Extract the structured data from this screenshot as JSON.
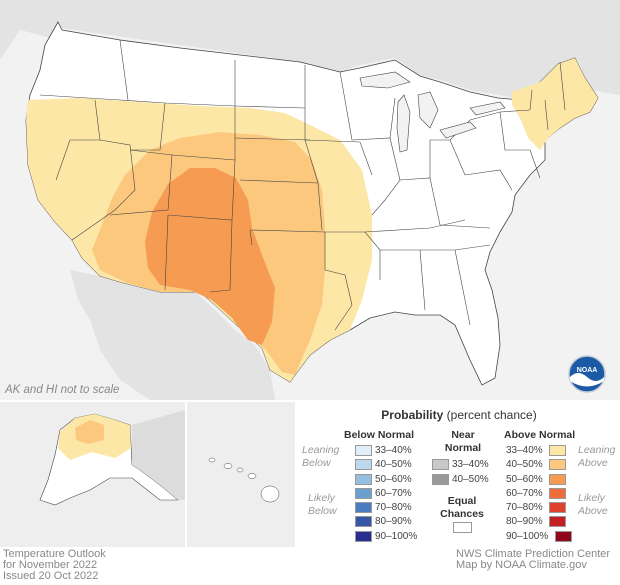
{
  "map": {
    "scale_note": "AK and HI not to scale",
    "footer_left": [
      "Temperature Outlook",
      "for November 2022",
      "Issued 20 Oct 2022"
    ],
    "footer_right": [
      "NWS Climate Prediction Center",
      "Map by NOAA Climate.gov"
    ],
    "logo_text": "NOAA",
    "colors": {
      "above_33_40": "#fde7a6",
      "above_40_50": "#fbc87e",
      "above_50_60": "#f69c52",
      "above_60_70": "#ee6d3b",
      "above_70_80": "#e0412d",
      "above_80_90": "#c41e25",
      "above_90_100": "#90071b",
      "below_33_40": "#dfeef8",
      "below_40_50": "#bdd9ee",
      "below_50_60": "#94bfe0",
      "below_60_70": "#6a9fd0",
      "below_70_80": "#4c7cc0",
      "below_80_90": "#3756a8",
      "below_90_100": "#2a2f8f",
      "near_33_40": "#c8c8c8",
      "near_40_50": "#9a9a9a",
      "equal": "#ffffff",
      "background_land": "#e6e6e6"
    }
  },
  "legend": {
    "title_bold": "Probability",
    "title_rest": "(percent chance)",
    "below_head": "Below Normal",
    "near_head_1": "Near",
    "near_head_2": "Normal",
    "above_head": "Above Normal",
    "leaning_below": [
      "Leaning",
      "Below"
    ],
    "likely_below": [
      "Likely",
      "Below"
    ],
    "leaning_above": [
      "Leaning",
      "Above"
    ],
    "likely_above": [
      "Likely",
      "Above"
    ],
    "ranges": [
      "33–40%",
      "40–50%",
      "50–60%",
      "60–70%",
      "70–80%",
      "80–90%",
      "90–100%"
    ],
    "near_ranges": [
      "33–40%",
      "40–50%"
    ],
    "equal_1": "Equal",
    "equal_2": "Chances"
  }
}
